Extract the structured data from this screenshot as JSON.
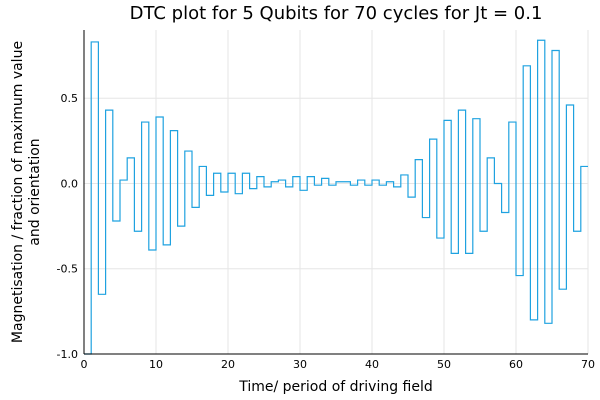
{
  "chart_data": {
    "type": "line",
    "step": true,
    "title": "DTC plot for 5 Qubits for 70 cycles for Jt = 0.1",
    "xlabel": "Time/ period of driving field",
    "ylabel_lines": [
      "Magnetisation / fraction of maximum value",
      "and orientation"
    ],
    "xlim": [
      0,
      70
    ],
    "ylim": [
      -1,
      0.9
    ],
    "xticks": [
      0,
      10,
      20,
      30,
      40,
      50,
      60,
      70
    ],
    "xtick_labels": [
      "0",
      "10",
      "20",
      "30",
      "40",
      "50",
      "60",
      "70"
    ],
    "yticks": [
      -1.0,
      -0.5,
      0.0,
      0.5
    ],
    "ytick_labels": [
      "-1.0",
      "-0.5",
      "0.0",
      "0.5"
    ],
    "grid": true,
    "legend": "none",
    "series": [
      {
        "color": "#1fa2e0",
        "x": [
          0,
          1,
          2,
          3,
          4,
          5,
          6,
          7,
          8,
          9,
          10,
          11,
          12,
          13,
          14,
          15,
          16,
          17,
          18,
          19,
          20,
          21,
          22,
          23,
          24,
          25,
          26,
          27,
          28,
          29,
          30,
          31,
          32,
          33,
          34,
          35,
          36,
          37,
          38,
          39,
          40,
          41,
          42,
          43,
          44,
          45,
          46,
          47,
          48,
          49,
          50,
          51,
          52,
          53,
          54,
          55,
          56,
          57,
          58,
          59,
          60,
          61,
          62,
          63,
          64,
          65,
          66,
          67,
          68,
          69,
          70
        ],
        "values": [
          -1.0,
          0.83,
          -0.65,
          0.43,
          -0.22,
          0.02,
          0.15,
          -0.28,
          0.36,
          -0.39,
          0.39,
          -0.36,
          0.31,
          -0.25,
          0.19,
          -0.14,
          0.1,
          -0.07,
          0.06,
          -0.05,
          0.06,
          -0.06,
          0.06,
          -0.03,
          0.04,
          -0.02,
          0.01,
          0.02,
          -0.02,
          0.04,
          -0.04,
          0.04,
          -0.01,
          0.03,
          -0.01,
          0.01,
          0.01,
          -0.01,
          0.02,
          -0.01,
          0.02,
          -0.01,
          0.01,
          -0.02,
          0.05,
          -0.08,
          0.14,
          -0.2,
          0.26,
          -0.32,
          0.37,
          -0.41,
          0.43,
          -0.41,
          0.38,
          -0.28,
          0.15,
          0.0,
          -0.17,
          0.36,
          -0.54,
          0.69,
          -0.8,
          0.84,
          -0.82,
          0.78,
          -0.62,
          0.46,
          -0.28,
          0.1,
          0.1
        ]
      }
    ]
  }
}
